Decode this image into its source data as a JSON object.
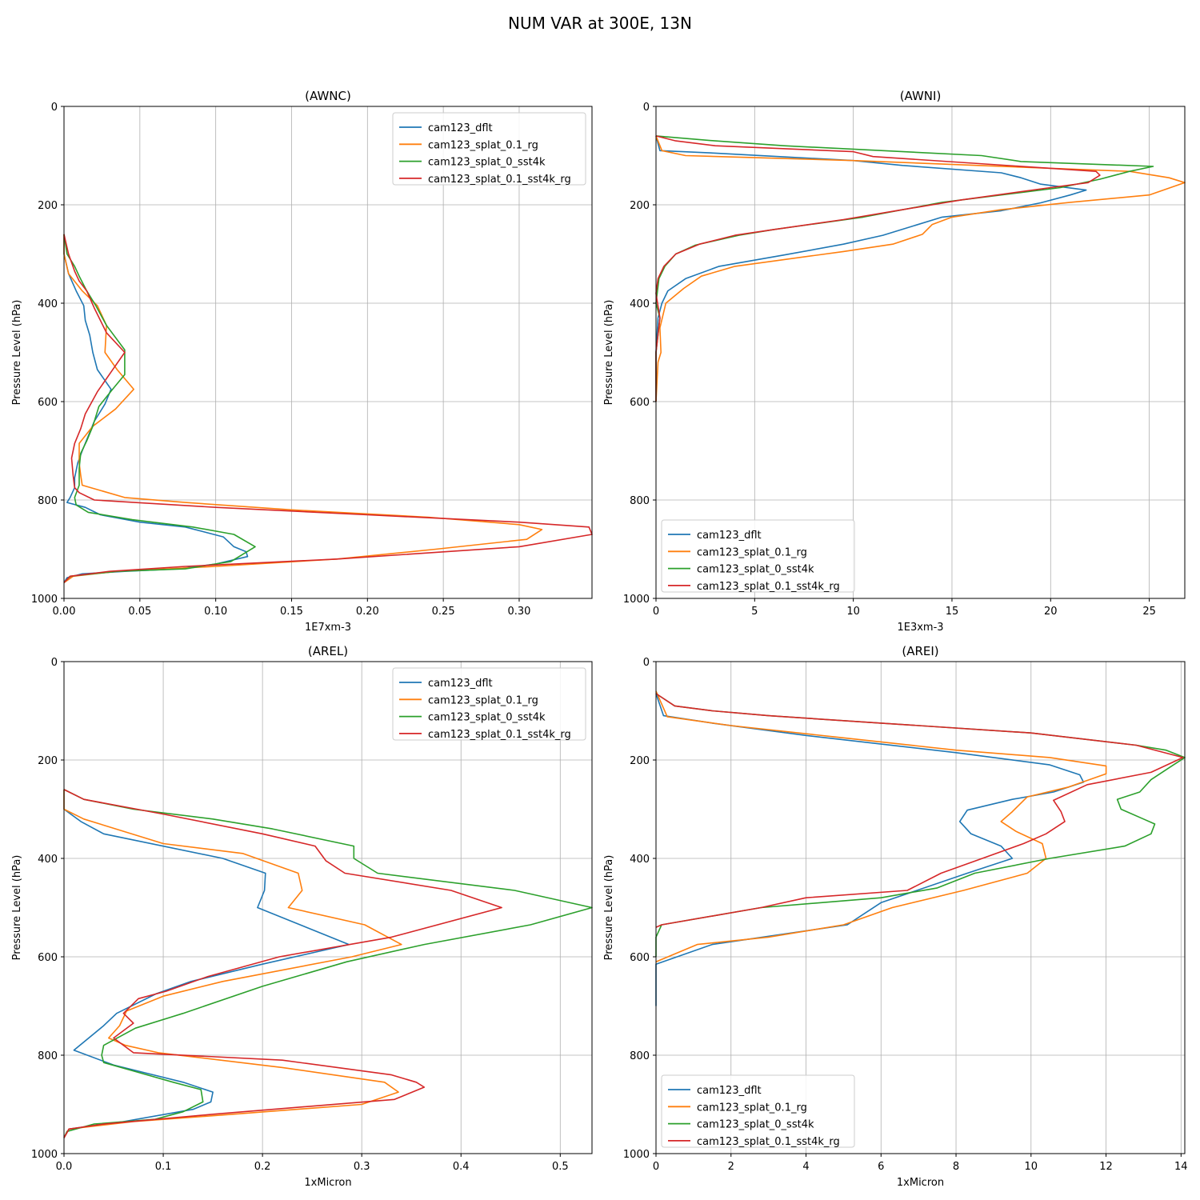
{
  "figure_title": "NUM VAR at 300E, 13N",
  "colors": {
    "cam123_dflt": "#1f77b4",
    "cam123_splat_0.1_rg": "#ff7f0e",
    "cam123_splat_0_sst4k": "#2ca02c",
    "cam123_splat_0.1_sst4k_rg": "#d62728"
  },
  "chart_data": [
    {
      "type": "line",
      "title": "(AWNC)",
      "xlabel": "1E7xm-3",
      "ylabel": "Pressure Level (hPa)",
      "xlim": [
        0,
        0.348
      ],
      "ylim": [
        1000,
        0
      ],
      "xticks": [
        0.0,
        0.05,
        0.1,
        0.15,
        0.2,
        0.25,
        0.3
      ],
      "xtick_labels": [
        "0.00",
        "0.05",
        "0.10",
        "0.15",
        "0.20",
        "0.25",
        "0.30"
      ],
      "yticks": [
        0,
        200,
        400,
        600,
        800,
        1000
      ],
      "grid": true,
      "legend_loc": "upper right",
      "series": [
        {
          "name": "cam123_dflt",
          "x": [
            0,
            0,
            0.003,
            0.008,
            0.013,
            0.014,
            0.017,
            0.019,
            0.022,
            0.031,
            0.027,
            0.02,
            0.016,
            0.012,
            0.009,
            0.007,
            0.007,
            0.004,
            0.002,
            0.014,
            0.024,
            0.05,
            0.08,
            0.105,
            0.112,
            0.12,
            0.121,
            0.1,
            0.075,
            0.04,
            0.012,
            0.002,
            0
          ],
          "y": [
            260,
            300,
            340,
            375,
            405,
            435,
            465,
            500,
            535,
            575,
            605,
            640,
            670,
            700,
            725,
            755,
            775,
            795,
            805,
            815,
            830,
            845,
            855,
            875,
            895,
            905,
            915,
            930,
            940,
            945,
            950,
            958,
            968
          ]
        },
        {
          "name": "cam123_splat_0.1_rg",
          "x": [
            0,
            0,
            0.003,
            0.012,
            0.022,
            0.028,
            0.027,
            0.035,
            0.046,
            0.034,
            0.019,
            0.01,
            0.01,
            0.011,
            0.012,
            0.04,
            0.08,
            0.15,
            0.24,
            0.3,
            0.315,
            0.305,
            0.245,
            0.18,
            0.1,
            0.035,
            0.006,
            0
          ],
          "y": [
            260,
            300,
            340,
            375,
            405,
            445,
            500,
            535,
            575,
            615,
            650,
            685,
            725,
            750,
            770,
            795,
            805,
            820,
            835,
            850,
            860,
            880,
            900,
            920,
            935,
            945,
            955,
            968
          ]
        },
        {
          "name": "cam123_splat_0_sst4k",
          "x": [
            0,
            0.002,
            0.007,
            0.01,
            0.015,
            0.021,
            0.028,
            0.04,
            0.04,
            0.032,
            0.023,
            0.019,
            0.015,
            0.011,
            0.01,
            0.01,
            0.007,
            0.008,
            0.016,
            0.045,
            0.085,
            0.112,
            0.126,
            0.11,
            0.08,
            0.035,
            0.004,
            0
          ],
          "y": [
            260,
            300,
            325,
            345,
            375,
            405,
            445,
            495,
            545,
            575,
            610,
            650,
            680,
            705,
            735,
            770,
            795,
            810,
            825,
            840,
            855,
            870,
            895,
            925,
            940,
            945,
            955,
            968
          ]
        },
        {
          "name": "cam123_splat_0.1_sst4k_rg",
          "x": [
            0,
            0.003,
            0.007,
            0.01,
            0.015,
            0.02,
            0.028,
            0.04,
            0.031,
            0.022,
            0.014,
            0.011,
            0.007,
            0.005,
            0.006,
            0.007,
            0.01,
            0.02,
            0.1,
            0.2,
            0.3,
            0.346,
            0.348,
            0.3,
            0.18,
            0.08,
            0.03,
            0.004,
            0
          ],
          "y": [
            260,
            300,
            335,
            355,
            375,
            410,
            460,
            500,
            540,
            580,
            625,
            655,
            685,
            715,
            750,
            775,
            785,
            800,
            815,
            830,
            845,
            855,
            870,
            895,
            920,
            935,
            945,
            955,
            968
          ]
        }
      ]
    },
    {
      "type": "line",
      "title": "(AWNI)",
      "xlabel": "1E3xm-3",
      "ylabel": "Pressure Level (hPa)",
      "xlim": [
        0,
        26.8
      ],
      "ylim": [
        1000,
        0
      ],
      "xticks": [
        0,
        5,
        10,
        15,
        20,
        25
      ],
      "xtick_labels": [
        "0",
        "5",
        "10",
        "15",
        "20",
        "25"
      ],
      "yticks": [
        0,
        200,
        400,
        600,
        800,
        1000
      ],
      "grid": true,
      "legend_loc": "lower left",
      "series": [
        {
          "name": "cam123_dflt",
          "x": [
            0,
            0.2,
            3,
            10,
            12.5,
            17.5,
            18.5,
            19.5,
            21.8,
            21.0,
            19.5,
            17.5,
            14.5,
            11.5,
            9.5,
            6.5,
            3.2,
            1.5,
            0.6,
            0.3,
            0.1,
            0,
            0
          ],
          "y": [
            60,
            90,
            95,
            110,
            120,
            135,
            145,
            158,
            170,
            180,
            196,
            212,
            225,
            262,
            280,
            302,
            325,
            350,
            375,
            400,
            430,
            500,
            600
          ]
        },
        {
          "name": "cam123_splat_0.1_rg",
          "x": [
            0,
            0.3,
            1.5,
            10,
            24,
            26,
            26.8,
            25,
            21,
            17.5,
            15,
            14,
            13.5,
            12,
            9.5,
            4,
            2.3,
            1.4,
            0.5,
            0.2,
            0.25,
            0.1,
            0
          ],
          "y": [
            60,
            90,
            100,
            110,
            132,
            145,
            155,
            180,
            195,
            210,
            225,
            240,
            260,
            280,
            295,
            325,
            345,
            370,
            400,
            450,
            500,
            520,
            600
          ]
        },
        {
          "name": "cam123_splat_0_sst4k",
          "x": [
            0,
            3,
            6.5,
            16.5,
            18.5,
            25.2,
            24,
            22.5,
            20.5,
            17.5,
            14.5,
            10.5,
            6,
            4.2,
            2,
            1,
            0.45,
            0.15,
            0,
            0.2,
            0,
            0
          ],
          "y": [
            60,
            70,
            80,
            100,
            112,
            122,
            132,
            148,
            165,
            180,
            195,
            225,
            250,
            262,
            282,
            300,
            325,
            350,
            400,
            430,
            500,
            600
          ]
        },
        {
          "name": "cam123_splat_0.1_sst4k_rg",
          "x": [
            0,
            1,
            3,
            10,
            11,
            22.3,
            22.5,
            21.9,
            20,
            15.5,
            12.5,
            9.5,
            6,
            4,
            2.2,
            1,
            0.4,
            0.1,
            0,
            0.2,
            0,
            0
          ],
          "y": [
            60,
            70,
            80,
            92,
            102,
            132,
            140,
            155,
            165,
            190,
            210,
            230,
            250,
            262,
            280,
            300,
            325,
            350,
            380,
            430,
            500,
            600
          ]
        }
      ]
    },
    {
      "type": "line",
      "title": "(AREL)",
      "xlabel": "1xMicron",
      "ylabel": "Pressure Level (hPa)",
      "xlim": [
        0,
        0.532
      ],
      "ylim": [
        1000,
        0
      ],
      "xticks": [
        0,
        0.1,
        0.2,
        0.3,
        0.4,
        0.5
      ],
      "xtick_labels": [
        "0.0",
        "0.1",
        "0.2",
        "0.3",
        "0.4",
        "0.5"
      ],
      "yticks": [
        0,
        200,
        400,
        600,
        800,
        1000
      ],
      "grid": true,
      "legend_loc": "upper right",
      "series": [
        {
          "name": "cam123_dflt",
          "x": [
            0,
            0,
            0.017,
            0.04,
            0.16,
            0.203,
            0.202,
            0.195,
            0.287,
            0.2,
            0.128,
            0.093,
            0.053,
            0.04,
            0.01,
            0.05,
            0.08,
            0.12,
            0.15,
            0.148,
            0.13,
            0.06,
            0.005,
            0
          ],
          "y": [
            260,
            300,
            325,
            350,
            400,
            430,
            465,
            500,
            575,
            615,
            650,
            675,
            715,
            740,
            790,
            820,
            835,
            855,
            875,
            895,
            910,
            935,
            950,
            968
          ]
        },
        {
          "name": "cam123_splat_0.1_rg",
          "x": [
            0,
            0,
            0.02,
            0.1,
            0.18,
            0.236,
            0.24,
            0.226,
            0.303,
            0.34,
            0.29,
            0.16,
            0.1,
            0.063,
            0.056,
            0.045,
            0.062,
            0.095,
            0.22,
            0.323,
            0.337,
            0.3,
            0.17,
            0.07,
            0.005,
            0
          ],
          "y": [
            260,
            300,
            320,
            370,
            390,
            430,
            465,
            500,
            535,
            575,
            600,
            650,
            680,
            710,
            740,
            765,
            780,
            795,
            825,
            855,
            875,
            900,
            920,
            935,
            950,
            968
          ]
        },
        {
          "name": "cam123_splat_0_sst4k",
          "x": [
            0,
            0.02,
            0.07,
            0.15,
            0.21,
            0.292,
            0.292,
            0.316,
            0.454,
            0.532,
            0.47,
            0.363,
            0.285,
            0.2,
            0.12,
            0.072,
            0.04,
            0.038,
            0.04,
            0.075,
            0.11,
            0.138,
            0.14,
            0.12,
            0.092,
            0.03,
            0.003,
            0
          ],
          "y": [
            260,
            280,
            300,
            320,
            340,
            375,
            400,
            430,
            465,
            500,
            535,
            575,
            610,
            660,
            715,
            745,
            780,
            800,
            815,
            835,
            855,
            870,
            895,
            915,
            930,
            940,
            955,
            968
          ]
        },
        {
          "name": "cam123_splat_0.1_sst4k_rg",
          "x": [
            0,
            0.02,
            0.1,
            0.2,
            0.253,
            0.264,
            0.283,
            0.39,
            0.441,
            0.33,
            0.217,
            0.145,
            0.103,
            0.075,
            0.06,
            0.07,
            0.05,
            0.07,
            0.22,
            0.33,
            0.355,
            0.363,
            0.333,
            0.15,
            0.04,
            0.005,
            0
          ],
          "y": [
            260,
            280,
            310,
            350,
            375,
            405,
            430,
            465,
            500,
            560,
            600,
            640,
            670,
            685,
            715,
            735,
            765,
            795,
            810,
            840,
            855,
            865,
            890,
            920,
            940,
            950,
            968
          ]
        }
      ]
    },
    {
      "type": "line",
      "title": "(AREI)",
      "xlabel": "1xMicron",
      "ylabel": "Pressure Level (hPa)",
      "xlim": [
        0,
        14.1
      ],
      "ylim": [
        1000,
        0
      ],
      "xticks": [
        0,
        2,
        4,
        6,
        8,
        10,
        12,
        14
      ],
      "xtick_labels": [
        "0",
        "2",
        "4",
        "6",
        "8",
        "10",
        "12",
        "14"
      ],
      "yticks": [
        0,
        200,
        400,
        600,
        800,
        1000
      ],
      "grid": true,
      "legend_loc": "lower left",
      "series": [
        {
          "name": "cam123_dflt",
          "x": [
            0,
            0.2,
            1.5,
            4,
            8,
            10.5,
            11.3,
            11.4,
            10.6,
            9.5,
            8.3,
            8.1,
            8.4,
            9.2,
            9.5,
            8.3,
            6,
            5.1,
            1.5,
            0,
            0
          ],
          "y": [
            65,
            110,
            125,
            150,
            185,
            210,
            230,
            245,
            265,
            280,
            302,
            325,
            350,
            375,
            400,
            430,
            490,
            535,
            575,
            615,
            700
          ]
        },
        {
          "name": "cam123_splat_0.1_rg",
          "x": [
            0,
            0.3,
            2,
            5,
            8,
            10.5,
            12,
            12,
            11,
            9.9,
            9.5,
            9.2,
            9.6,
            10.3,
            10.4,
            9.9,
            8.2,
            6.3,
            5,
            3,
            1.1,
            0
          ],
          "y": [
            60,
            112,
            130,
            155,
            180,
            195,
            212,
            228,
            255,
            275,
            305,
            325,
            345,
            370,
            400,
            430,
            465,
            500,
            535,
            560,
            575,
            610
          ]
        },
        {
          "name": "cam123_splat_0_sst4k",
          "x": [
            0,
            0.5,
            1.5,
            3,
            6,
            10,
            12.8,
            13.6,
            14.1,
            13.8,
            13.2,
            12.9,
            12.3,
            12.4,
            13,
            13.3,
            13.2,
            12.5,
            10.5,
            8.5,
            7.5,
            6,
            2.8,
            0.15,
            0,
            0
          ],
          "y": [
            65,
            90,
            100,
            110,
            125,
            145,
            170,
            180,
            195,
            210,
            240,
            265,
            280,
            300,
            320,
            330,
            350,
            375,
            400,
            430,
            460,
            480,
            500,
            535,
            560,
            600
          ]
        },
        {
          "name": "cam123_splat_0.1_sst4k_rg",
          "x": [
            0,
            0.5,
            1.5,
            3,
            6,
            10,
            12.8,
            14.05,
            13.2,
            11.5,
            10.6,
            10.8,
            10.9,
            10.4,
            9.8,
            8.7,
            7.6,
            6.7,
            4,
            2.8,
            0.15,
            0
          ],
          "y": [
            65,
            90,
            100,
            110,
            125,
            145,
            170,
            195,
            225,
            250,
            282,
            305,
            325,
            350,
            370,
            400,
            430,
            465,
            480,
            500,
            535,
            540
          ]
        }
      ]
    }
  ]
}
